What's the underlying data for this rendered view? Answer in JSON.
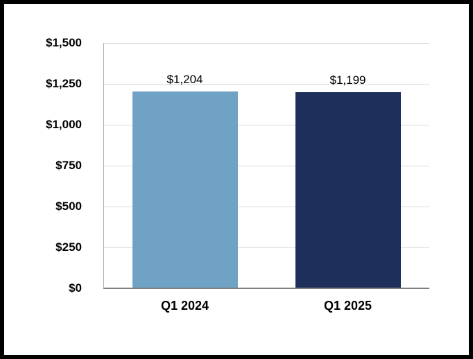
{
  "chart_data": {
    "type": "bar",
    "categories": [
      "Q1 2024",
      "Q1 2025"
    ],
    "values": [
      1204,
      1199
    ],
    "value_labels": [
      "$1,204",
      "$1,199"
    ],
    "bar_colors": [
      "#6FA2C4",
      "#1E2F5C"
    ],
    "ylim": [
      0,
      1500
    ],
    "ytick_step": 250,
    "yticks": [
      "$0",
      "$250",
      "$500",
      "$750",
      "$1,000",
      "$1,250",
      "$1,500"
    ],
    "grid": true,
    "legend": false,
    "xlabel": "",
    "ylabel": ""
  },
  "colors": {
    "gridline": "#D9D9D9",
    "y_axis_line": "#A6A6A6",
    "x_axis_line": "#808080",
    "background": "#FFFFFF",
    "frame_border": "#000000",
    "text": "#000000"
  }
}
